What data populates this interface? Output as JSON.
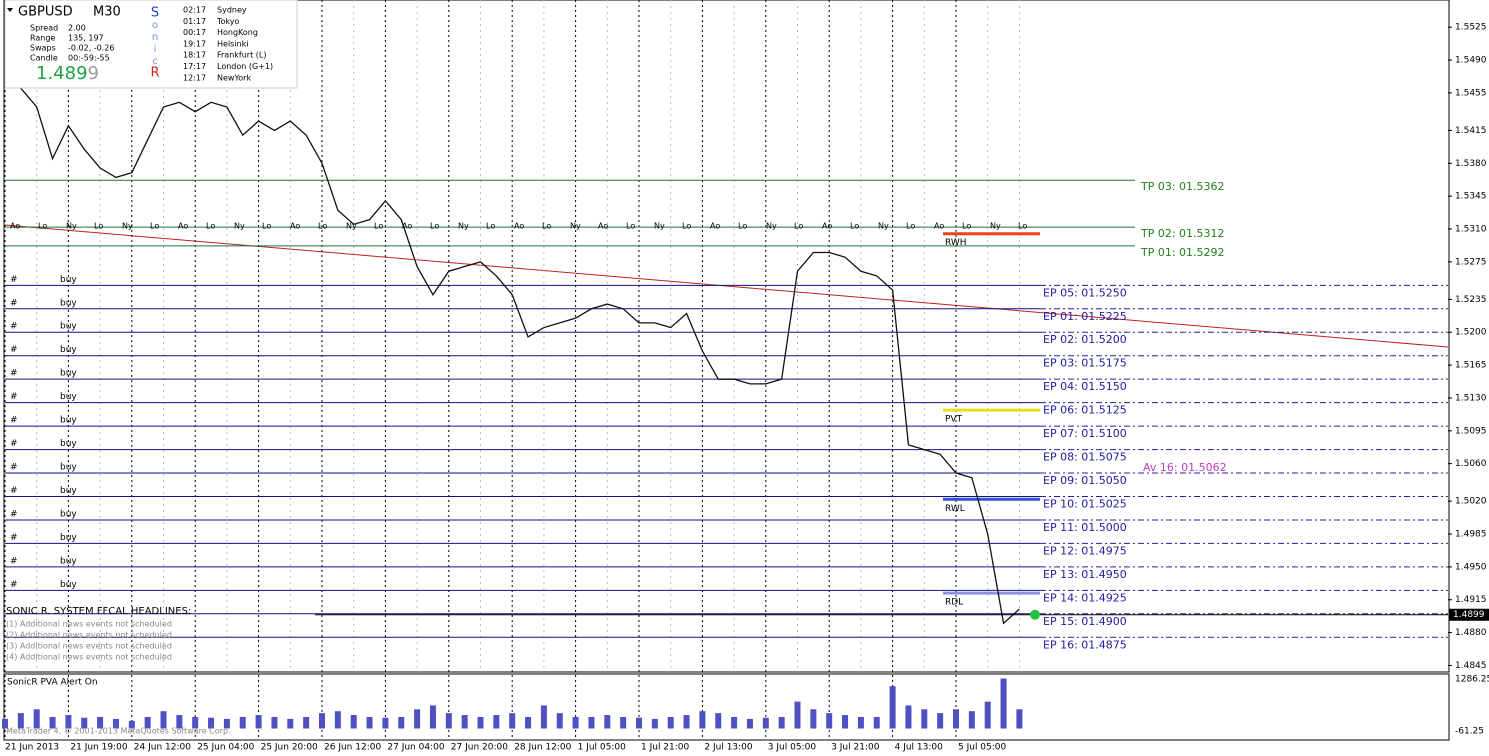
{
  "chart_data": [
    {
      "type": "line",
      "categories": [
        "21 Jun 2013",
        null,
        null,
        null,
        "21 Jun 19:00",
        null,
        null,
        null,
        "24 Jun 12:00",
        null,
        null,
        null,
        "25 Jun 04:00",
        null,
        null,
        null,
        "25 Jun 20:00",
        null,
        null,
        null,
        "26 Jun 12:00",
        null,
        null,
        null,
        "27 Jun 04:00",
        null,
        null,
        null,
        "27 Jun 20:00",
        null,
        null,
        null,
        "28 Jun 12:00",
        null,
        null,
        null,
        "1 Jul 05:00",
        null,
        null,
        null,
        "1 Jul 21:00",
        null,
        null,
        null,
        "2 Jul 13:00",
        null,
        null,
        null,
        "3 Jul 05:00",
        null,
        null,
        null,
        "3 Jul 21:00",
        null,
        null,
        null,
        "4 Jul 13:00",
        null,
        null,
        null,
        "5 Jul 05:00",
        null,
        null,
        null,
        null
      ],
      "series": [
        {
          "name": "GBPUSD",
          "color": "#101010",
          "values": [
            1.547,
            1.546,
            1.544,
            1.5385,
            1.542,
            1.5395,
            1.5375,
            1.5365,
            1.537,
            1.5405,
            1.544,
            1.5445,
            1.5435,
            1.5445,
            1.544,
            1.541,
            1.5425,
            1.5415,
            1.5425,
            1.541,
            1.538,
            1.533,
            1.5315,
            1.532,
            1.534,
            1.532,
            1.527,
            1.524,
            1.5265,
            1.527,
            1.5275,
            1.526,
            1.524,
            1.5195,
            1.5205,
            1.521,
            1.5215,
            1.5225,
            1.523,
            1.5225,
            1.521,
            1.521,
            1.5205,
            1.522,
            1.518,
            1.515,
            1.515,
            1.5145,
            1.5145,
            1.515,
            1.5265,
            1.5285,
            1.5285,
            1.528,
            1.5265,
            1.526,
            1.5245,
            1.508,
            1.5075,
            1.507,
            1.505,
            1.5045,
            1.4985,
            1.489,
            1.4905
          ]
        }
      ],
      "ylim": [
        1.4838,
        1.5554
      ],
      "yticks": [
        1.5525,
        {
          "value": 1.549,
          "label": "1.5490"
        },
        1.5455,
        1.5415,
        {
          "value": 1.538,
          "label": "1.5380"
        },
        1.5345,
        {
          "value": 1.531,
          "label": "1.5310"
        },
        1.5275,
        1.5235,
        {
          "value": 1.52,
          "label": "1.5200"
        },
        1.5165,
        {
          "value": 1.513,
          "label": "1.5130"
        },
        1.5095,
        {
          "value": 1.506,
          "label": "1.5060"
        },
        {
          "value": 1.502,
          "label": "1.5020"
        },
        1.4985,
        {
          "value": 1.495,
          "label": "1.4950"
        },
        1.4915,
        {
          "value": 1.488,
          "label": "1.4880"
        },
        1.4845
      ],
      "last_price": 1.4899,
      "levels": [
        {
          "label": "EP 05: 01.5250",
          "value": 1.525
        },
        {
          "label": "EP 01: 01.5225",
          "value": 1.5225
        },
        {
          "label": "EP 02: 01.5200",
          "value": 1.52
        },
        {
          "label": "EP 03: 01.5175",
          "value": 1.5175
        },
        {
          "label": "EP 04: 01.5150",
          "value": 1.515
        },
        {
          "label": "EP 06: 01.5125",
          "value": 1.5125
        },
        {
          "label": "EP 07: 01.5100",
          "value": 1.51
        },
        {
          "label": "EP 08: 01.5075",
          "value": 1.5075
        },
        {
          "label": "EP 09: 01.5050",
          "value": 1.505
        },
        {
          "label": "EP 10: 01.5025",
          "value": 1.5025
        },
        {
          "label": "EP 11: 01.5000",
          "value": 1.5
        },
        {
          "label": "EP 12: 01.4975",
          "value": 1.4975
        },
        {
          "label": "EP 13: 01.4950",
          "value": 1.495
        },
        {
          "label": "EP 14: 01.4925",
          "value": 1.4925
        },
        {
          "label": "EP 15: 01.4900",
          "value": 1.49
        },
        {
          "label": "EP 16: 01.4875",
          "value": 1.4875
        }
      ],
      "targets": [
        {
          "label": "TP 03: 01.5362",
          "value": 1.5362
        },
        {
          "label": "TP 02: 01.5312",
          "value": 1.5312
        },
        {
          "label": "TP 01: 01.5292",
          "value": 1.5292
        }
      ],
      "markers": [
        {
          "label": "RWH",
          "value": 1.5305,
          "color": "#f04020"
        },
        {
          "label": "PVT",
          "value": 1.5117,
          "color": "#e0e020"
        },
        {
          "label": "RWL",
          "value": 1.5022,
          "color": "#3050d0"
        },
        {
          "label": "RDL",
          "value": 1.4922,
          "color": "#9090e0"
        }
      ],
      "average": {
        "label": "Av 16: 01.5062",
        "value": 1.5062,
        "color": "#c040c0"
      }
    },
    {
      "type": "bar",
      "title": "SonicR PVA   Alert On",
      "color": "#5050c0",
      "categories": [
        "21 Jun 2013",
        null,
        null,
        null,
        "21 Jun 19:00",
        null,
        null,
        null,
        "24 Jun 12:00",
        null,
        null,
        null,
        "25 Jun 04:00",
        null,
        null,
        null,
        "25 Jun 20:00",
        null,
        null,
        null,
        "26 Jun 12:00",
        null,
        null,
        null,
        "27 Jun 04:00",
        null,
        null,
        null,
        "27 Jun 20:00",
        null,
        null,
        null,
        "28 Jun 12:00",
        null,
        null,
        null,
        "1 Jul 05:00",
        null,
        null,
        null,
        "1 Jul 21:00",
        null,
        null,
        null,
        "2 Jul 13:00",
        null,
        null,
        null,
        "3 Jul 05:00",
        null,
        null,
        null,
        "3 Jul 21:00",
        null,
        null,
        null,
        "4 Jul 13:00",
        null,
        null,
        null,
        "5 Jul 05:00",
        null,
        null,
        null,
        null
      ],
      "values": [
        250,
        400,
        500,
        300,
        350,
        280,
        300,
        250,
        200,
        300,
        450,
        350,
        300,
        280,
        250,
        300,
        350,
        300,
        250,
        300,
        400,
        450,
        350,
        300,
        280,
        300,
        500,
        600,
        400,
        350,
        300,
        350,
        400,
        300,
        600,
        400,
        300,
        300,
        350,
        300,
        280,
        250,
        300,
        350,
        450,
        400,
        300,
        250,
        280,
        300,
        700,
        500,
        400,
        350,
        300,
        300,
        1100,
        600,
        500,
        400,
        500,
        450,
        700,
        1300,
        500
      ],
      "ylim": [
        -299,
        1418
      ],
      "yticks": [
        1286.25,
        -61.25
      ]
    }
  ],
  "panel": {
    "symbol": "GBPUSD",
    "timeframe": "M30",
    "rows": [
      [
        "Spread",
        "2.00"
      ],
      [
        "Range",
        "135, 197"
      ],
      [
        "Swaps",
        "-0.02, -0.26"
      ],
      [
        "Candle",
        "00:-59:-55"
      ]
    ],
    "price": 1.4899,
    "brand": [
      "S",
      "o",
      "n",
      "i",
      "c",
      "R"
    ],
    "clocks": [
      [
        "02:17",
        "Sydney"
      ],
      [
        "01:17",
        "Tokyo"
      ],
      [
        "00:17",
        "HongKong"
      ],
      [
        "19:17",
        "Helsinki"
      ],
      [
        "18:17",
        "Frankfurt  (L)"
      ],
      [
        "17:17",
        "London  (G+1)"
      ],
      [
        "12:17",
        "NewYork"
      ]
    ]
  },
  "orders": [
    [
      "#",
      "buy"
    ],
    [
      "#",
      "buy"
    ],
    [
      "#",
      "buy"
    ],
    [
      "#",
      "buy"
    ],
    [
      "#",
      "buy"
    ],
    [
      "#",
      "buy"
    ],
    [
      "#",
      "buy"
    ],
    [
      "#",
      "buy"
    ],
    [
      "#",
      "buy"
    ],
    [
      "#",
      "buy"
    ],
    [
      "#",
      "buy"
    ],
    [
      "#",
      "buy"
    ],
    [
      "#",
      "buy"
    ],
    [
      "#",
      "buy"
    ]
  ],
  "sessions": [
    "Ao",
    "Lo",
    "Ny",
    "Lo",
    "Ny",
    "Lo",
    "Ao",
    "Lo",
    "Ny",
    "Lo",
    "Ao",
    "Lo",
    "Ny",
    "Lo",
    "Ao",
    "Lo",
    "Ny",
    "Lo",
    "Ao",
    "Lo",
    "Ny",
    "Ao",
    "Lo",
    "Ny",
    "Lo",
    "Ao",
    "Lo",
    "Ny",
    "Lo",
    "Ao",
    "Lo",
    "Ny",
    "Lo",
    "Ao",
    "Lo",
    "Ny",
    "Lo"
  ],
  "headlines": {
    "title": "SONIC R. SYSTEM  FFCAL HEADLINES:",
    "items": [
      "(1)  Additional news events not scheduled",
      "(2)  Additional news events not scheduled",
      "(3)  Additional news events not scheduled",
      "(4)  Additional news events not scheduled"
    ]
  },
  "footer": "MetaTrader 4, © 2001-2013 MetaQuotes Software Corp."
}
